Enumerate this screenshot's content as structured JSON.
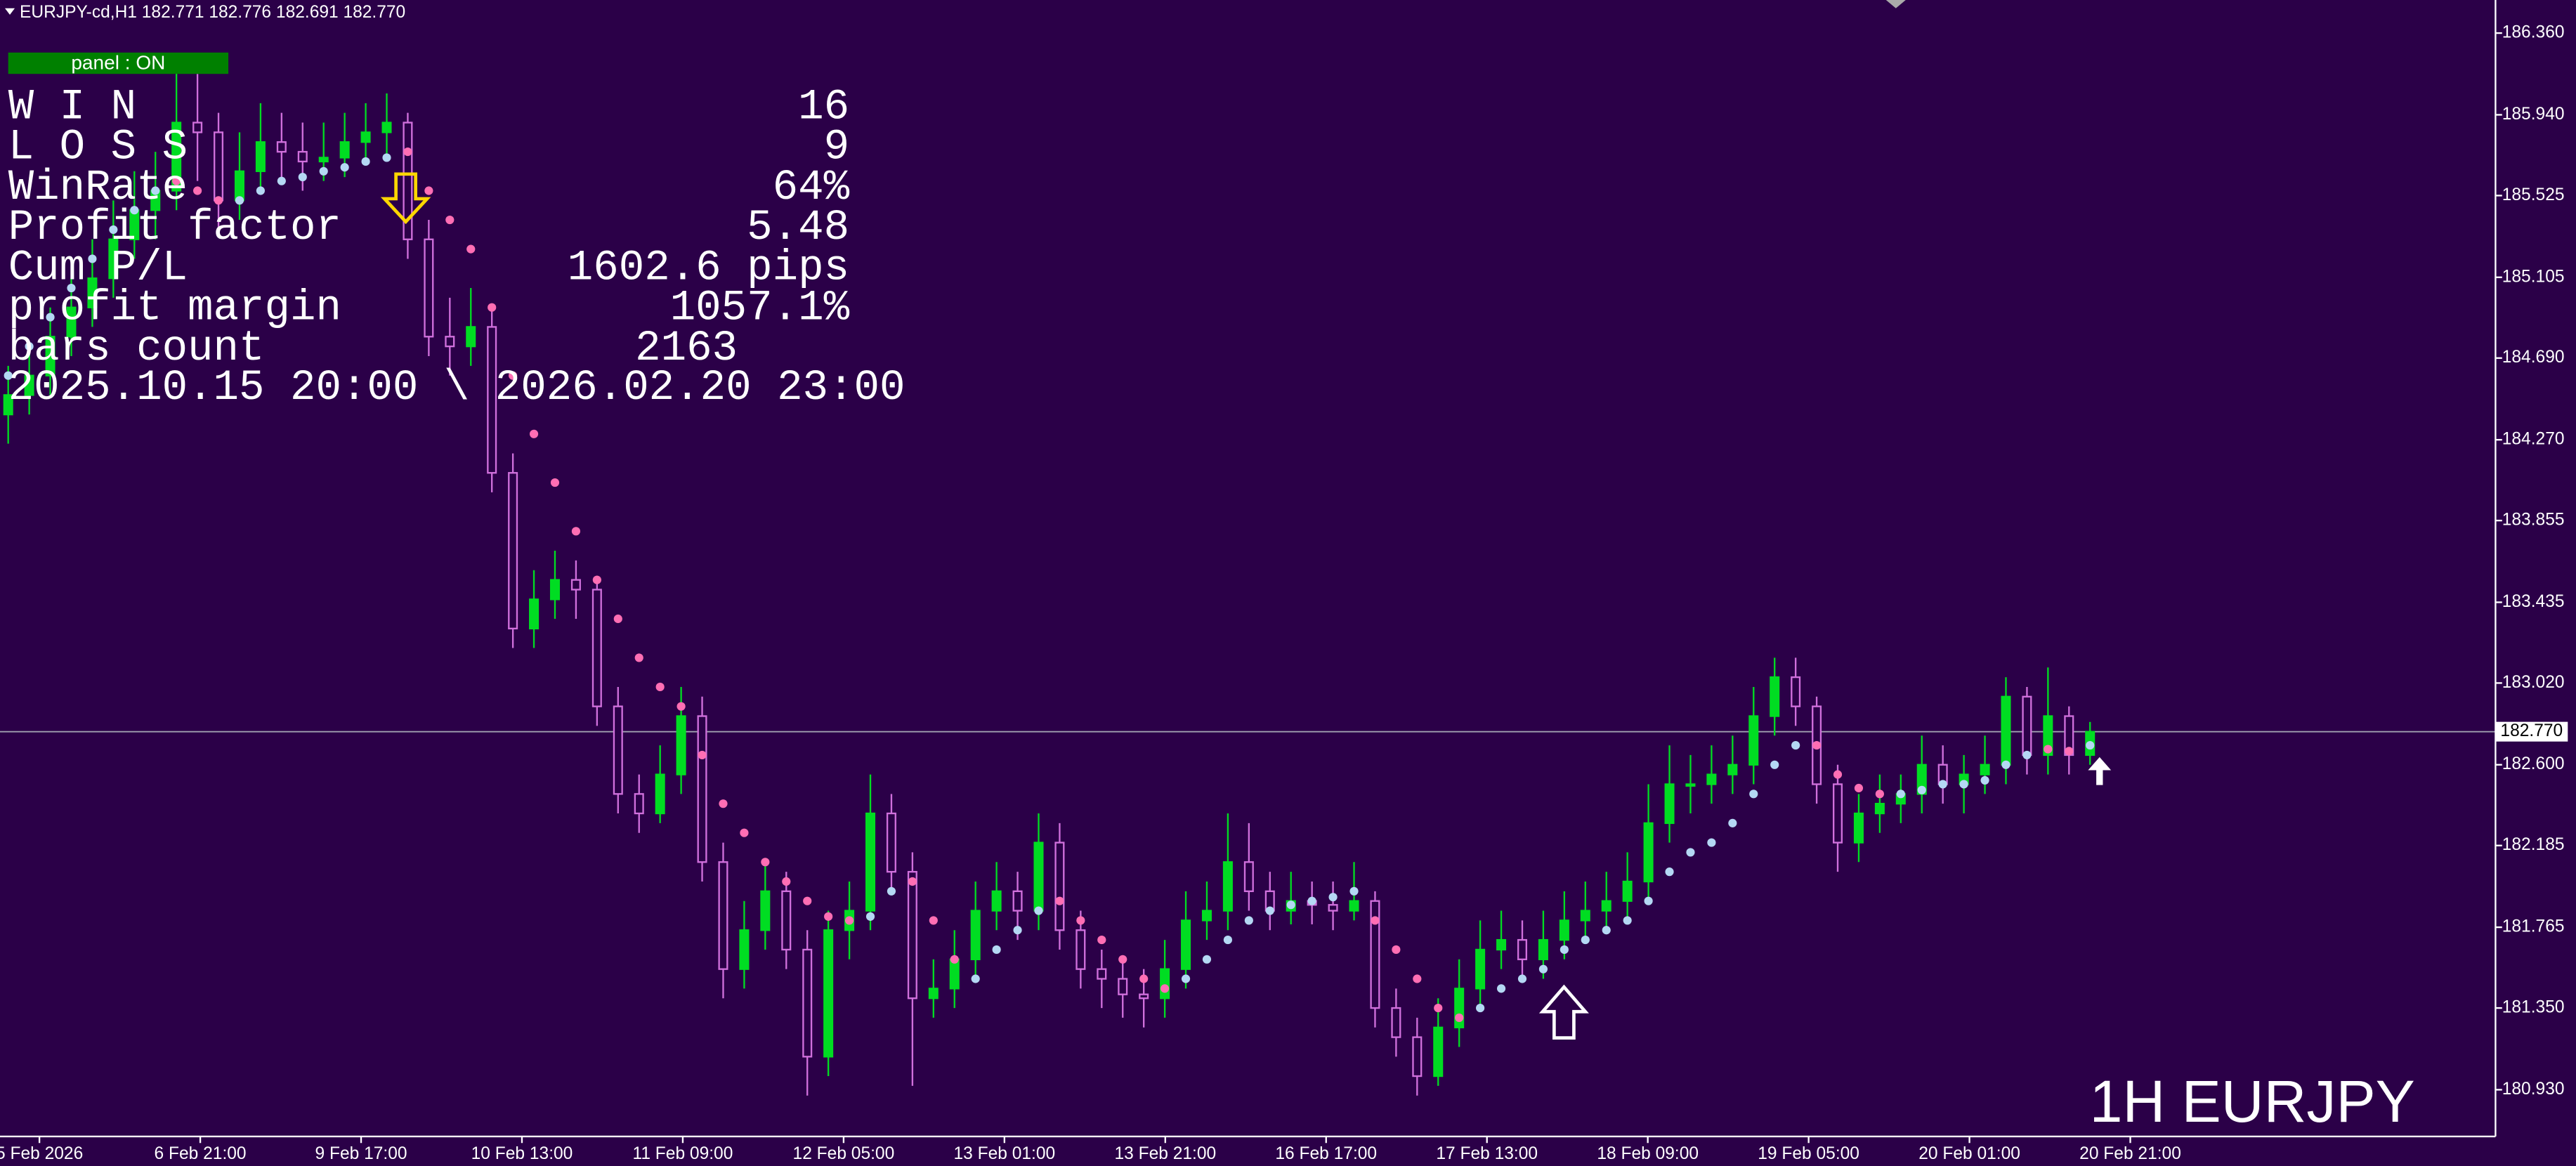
{
  "chart_data": {
    "type": "candlestick",
    "header": "EURJPY-cd,H1  182.771 182.776 182.691 182.770",
    "watermark": "1H EURJPY",
    "up_color": "#00dd22",
    "down_color": "#d070dc",
    "background": "#2b0048",
    "ohlc": [
      [
        184.4,
        184.65,
        184.25,
        184.5
      ],
      [
        184.5,
        184.75,
        184.4,
        184.6
      ],
      [
        184.6,
        184.95,
        184.5,
        184.8
      ],
      [
        184.8,
        185.1,
        184.7,
        184.95
      ],
      [
        184.95,
        185.3,
        184.85,
        185.1
      ],
      [
        185.1,
        185.5,
        185.0,
        185.3
      ],
      [
        185.3,
        185.65,
        185.2,
        185.45
      ],
      [
        185.45,
        185.75,
        185.3,
        185.55
      ],
      [
        185.55,
        186.2,
        185.45,
        185.9
      ],
      [
        185.9,
        186.15,
        185.6,
        185.85
      ],
      [
        185.85,
        185.95,
        185.35,
        185.5
      ],
      [
        185.5,
        185.85,
        185.4,
        185.65
      ],
      [
        185.65,
        186.0,
        185.55,
        185.8
      ],
      [
        185.8,
        185.95,
        185.6,
        185.75
      ],
      [
        185.75,
        185.9,
        185.55,
        185.7
      ],
      [
        185.7,
        185.9,
        185.6,
        185.72
      ],
      [
        185.72,
        185.95,
        185.62,
        185.8
      ],
      [
        185.8,
        186.0,
        185.7,
        185.85
      ],
      [
        185.85,
        186.05,
        185.7,
        185.9
      ],
      [
        185.9,
        185.95,
        185.2,
        185.3
      ],
      [
        185.3,
        185.4,
        184.7,
        184.8
      ],
      [
        184.8,
        185.0,
        184.6,
        184.75
      ],
      [
        184.75,
        185.05,
        184.65,
        184.85
      ],
      [
        184.85,
        184.95,
        184.0,
        184.1
      ],
      [
        184.1,
        184.2,
        183.2,
        183.3
      ],
      [
        183.3,
        183.6,
        183.2,
        183.45
      ],
      [
        183.45,
        183.7,
        183.35,
        183.55
      ],
      [
        183.55,
        183.65,
        183.35,
        183.5
      ],
      [
        183.5,
        183.55,
        182.8,
        182.9
      ],
      [
        182.9,
        183.0,
        182.35,
        182.45
      ],
      [
        182.45,
        182.55,
        182.25,
        182.35
      ],
      [
        182.35,
        182.7,
        182.3,
        182.55
      ],
      [
        182.55,
        183.0,
        182.45,
        182.85
      ],
      [
        182.85,
        182.95,
        182.0,
        182.1
      ],
      [
        182.1,
        182.2,
        181.4,
        181.55
      ],
      [
        181.55,
        181.9,
        181.45,
        181.75
      ],
      [
        181.75,
        182.1,
        181.65,
        181.95
      ],
      [
        181.95,
        182.05,
        181.55,
        181.65
      ],
      [
        181.65,
        181.75,
        180.9,
        181.1
      ],
      [
        181.1,
        181.85,
        181.0,
        181.75
      ],
      [
        181.75,
        182.0,
        181.6,
        181.85
      ],
      [
        181.85,
        182.55,
        181.75,
        182.35
      ],
      [
        182.35,
        182.45,
        181.95,
        182.05
      ],
      [
        182.05,
        182.15,
        180.95,
        181.4
      ],
      [
        181.4,
        181.6,
        181.3,
        181.45
      ],
      [
        181.45,
        181.75,
        181.35,
        181.6
      ],
      [
        181.6,
        182.0,
        181.5,
        181.85
      ],
      [
        181.85,
        182.1,
        181.75,
        181.95
      ],
      [
        181.95,
        182.05,
        181.7,
        181.85
      ],
      [
        181.85,
        182.35,
        181.75,
        182.2
      ],
      [
        182.2,
        182.3,
        181.65,
        181.75
      ],
      [
        181.75,
        181.85,
        181.45,
        181.55
      ],
      [
        181.55,
        181.65,
        181.35,
        181.5
      ],
      [
        181.5,
        181.6,
        181.3,
        181.42
      ],
      [
        181.42,
        181.55,
        181.25,
        181.4
      ],
      [
        181.4,
        181.7,
        181.3,
        181.55
      ],
      [
        181.55,
        181.95,
        181.45,
        181.8
      ],
      [
        181.8,
        182.0,
        181.7,
        181.85
      ],
      [
        181.85,
        182.35,
        181.75,
        182.1
      ],
      [
        182.1,
        182.3,
        181.85,
        181.95
      ],
      [
        181.95,
        182.05,
        181.75,
        181.85
      ],
      [
        181.85,
        182.05,
        181.78,
        181.9
      ],
      [
        181.9,
        182.0,
        181.78,
        181.88
      ],
      [
        181.88,
        182.0,
        181.75,
        181.85
      ],
      [
        181.85,
        182.1,
        181.8,
        181.9
      ],
      [
        181.9,
        181.95,
        181.25,
        181.35
      ],
      [
        181.35,
        181.45,
        181.1,
        181.2
      ],
      [
        181.2,
        181.3,
        180.9,
        181.0
      ],
      [
        181.0,
        181.4,
        180.95,
        181.25
      ],
      [
        181.25,
        181.6,
        181.15,
        181.45
      ],
      [
        181.45,
        181.8,
        181.35,
        181.65
      ],
      [
        181.65,
        181.85,
        181.55,
        181.7
      ],
      [
        181.7,
        181.8,
        181.5,
        181.6
      ],
      [
        181.6,
        181.85,
        181.5,
        181.7
      ],
      [
        181.7,
        181.95,
        181.6,
        181.8
      ],
      [
        181.8,
        182.0,
        181.7,
        181.85
      ],
      [
        181.85,
        182.05,
        181.75,
        181.9
      ],
      [
        181.9,
        182.15,
        181.8,
        182.0
      ],
      [
        182.0,
        182.5,
        181.9,
        182.3
      ],
      [
        182.3,
        182.7,
        182.2,
        182.5
      ],
      [
        182.5,
        182.65,
        182.35,
        182.5
      ],
      [
        182.5,
        182.7,
        182.4,
        182.55
      ],
      [
        182.55,
        182.75,
        182.45,
        182.6
      ],
      [
        182.6,
        183.0,
        182.5,
        182.85
      ],
      [
        182.85,
        183.15,
        182.75,
        183.05
      ],
      [
        183.05,
        183.15,
        182.8,
        182.9
      ],
      [
        182.9,
        182.95,
        182.4,
        182.5
      ],
      [
        182.5,
        182.6,
        182.05,
        182.2
      ],
      [
        182.2,
        182.45,
        182.1,
        182.35
      ],
      [
        182.35,
        182.55,
        182.25,
        182.4
      ],
      [
        182.4,
        182.55,
        182.3,
        182.45
      ],
      [
        182.45,
        182.75,
        182.35,
        182.6
      ],
      [
        182.6,
        182.7,
        182.4,
        182.5
      ],
      [
        182.5,
        182.65,
        182.35,
        182.55
      ],
      [
        182.55,
        182.75,
        182.45,
        182.6
      ],
      [
        182.6,
        183.05,
        182.5,
        182.95
      ],
      [
        182.95,
        183.0,
        182.55,
        182.65
      ],
      [
        182.65,
        183.1,
        182.55,
        182.85
      ],
      [
        182.85,
        182.9,
        182.55,
        182.65
      ],
      [
        182.65,
        182.82,
        182.6,
        182.77
      ]
    ],
    "series": [
      {
        "color": "#ff6eb4",
        "values": [
          null,
          null,
          null,
          null,
          null,
          null,
          null,
          null,
          185.6,
          185.55,
          185.5,
          null,
          null,
          null,
          null,
          null,
          null,
          null,
          null,
          185.75,
          185.55,
          185.4,
          185.25,
          184.95,
          184.6,
          184.3,
          184.05,
          183.8,
          183.55,
          183.35,
          183.15,
          183.0,
          182.9,
          182.65,
          182.4,
          182.25,
          182.1,
          182.0,
          181.9,
          181.82,
          181.8,
          null,
          null,
          182.0,
          181.8,
          181.6,
          null,
          null,
          null,
          null,
          181.9,
          181.8,
          181.7,
          181.6,
          181.5,
          181.45,
          null,
          null,
          null,
          null,
          null,
          null,
          null,
          null,
          null,
          181.8,
          181.65,
          181.5,
          181.35,
          181.3,
          null,
          null,
          null,
          null,
          null,
          null,
          null,
          null,
          null,
          null,
          null,
          null,
          null,
          null,
          null,
          null,
          182.7,
          182.55,
          182.48,
          182.45,
          null,
          null,
          null,
          null,
          null,
          null,
          null,
          182.68,
          182.67,
          null
        ]
      },
      {
        "color": "#b4d8f4",
        "values": [
          184.6,
          184.75,
          184.9,
          185.05,
          185.2,
          185.35,
          185.45,
          185.55,
          null,
          null,
          null,
          185.5,
          185.55,
          185.6,
          185.62,
          185.65,
          185.67,
          185.7,
          185.72,
          null,
          null,
          null,
          null,
          null,
          null,
          null,
          null,
          null,
          null,
          null,
          null,
          null,
          null,
          null,
          null,
          null,
          null,
          null,
          null,
          null,
          null,
          181.82,
          181.95,
          null,
          null,
          null,
          181.5,
          181.65,
          181.75,
          181.85,
          null,
          null,
          null,
          null,
          null,
          null,
          181.5,
          181.6,
          181.7,
          181.8,
          181.85,
          181.88,
          181.9,
          181.92,
          181.95,
          null,
          null,
          null,
          null,
          null,
          181.35,
          181.45,
          181.5,
          181.55,
          181.65,
          181.7,
          181.75,
          181.8,
          181.9,
          182.05,
          182.15,
          182.2,
          182.3,
          182.45,
          182.6,
          182.7,
          null,
          null,
          null,
          null,
          182.45,
          182.47,
          182.5,
          182.5,
          182.52,
          182.6,
          182.65,
          null,
          null,
          182.7
        ]
      }
    ],
    "ylim": [
      180.69,
      186.53
    ],
    "yticks": [
      {
        "value": 186.36,
        "label": "186.360"
      },
      {
        "value": 185.94,
        "label": "185.940"
      },
      {
        "value": 185.525,
        "label": "185.525"
      },
      {
        "value": 185.105,
        "label": "185.105"
      },
      {
        "value": 184.69,
        "label": "184.690"
      },
      {
        "value": 184.27,
        "label": "184.270"
      },
      {
        "value": 183.855,
        "label": "183.855"
      },
      {
        "value": 183.435,
        "label": "183.435"
      },
      {
        "value": 183.02,
        "label": "183.020"
      },
      {
        "value": 182.6,
        "label": "182.600"
      },
      {
        "value": 182.185,
        "label": "182.185"
      },
      {
        "value": 181.765,
        "label": "181.765"
      },
      {
        "value": 181.35,
        "label": "181.350"
      },
      {
        "value": 180.93,
        "label": "180.930"
      }
    ],
    "last_price": {
      "value": 182.77,
      "label": "182.770"
    },
    "x_labels": [
      "5 Feb 2026",
      "6 Feb 21:00",
      "9 Feb 17:00",
      "10 Feb 13:00",
      "11 Feb 09:00",
      "12 Feb 05:00",
      "13 Feb 01:00",
      "13 Feb 21:00",
      "16 Feb 17:00",
      "17 Feb 13:00",
      "18 Feb 09:00",
      "19 Feb 05:00",
      "20 Feb 01:00",
      "20 Feb 21:00"
    ]
  },
  "panel": {
    "status": "panel : ON",
    "rows": [
      [
        "W I N",
        16
      ],
      [
        "L O S S",
        9
      ],
      [
        "WinRate",
        "64%"
      ],
      [
        "Profit factor",
        5.48
      ],
      [
        "Cum P/L",
        "1602.6 pips"
      ],
      [
        "profit margin",
        "1057.1%"
      ],
      [
        "bars count",
        2163
      ]
    ],
    "period": "2025.10.15 20:00 \\ 2026.02.20 23:00"
  }
}
